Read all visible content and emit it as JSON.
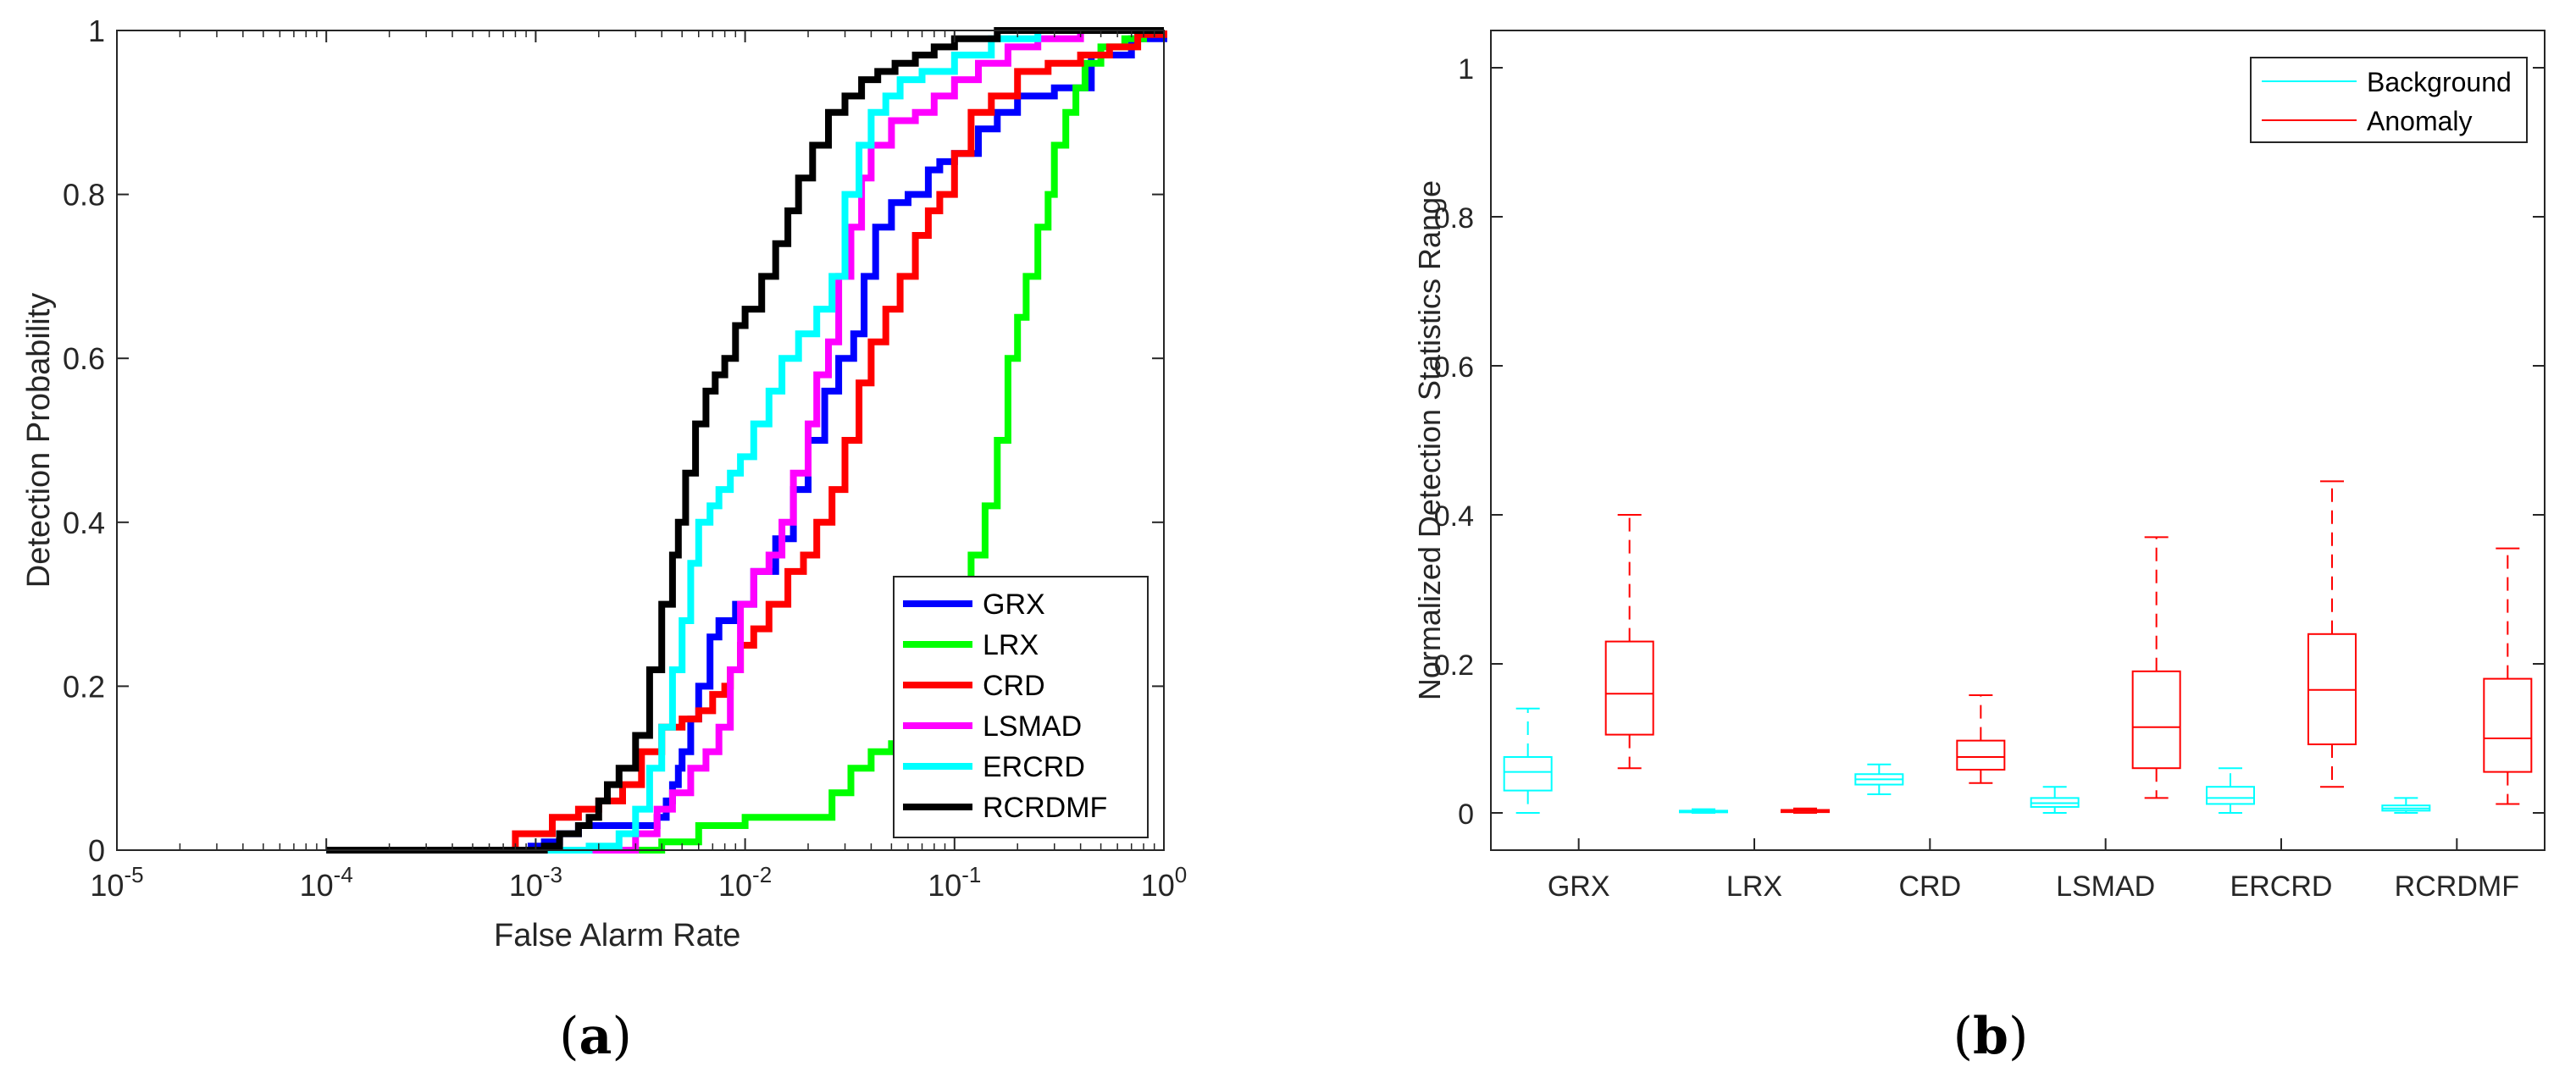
{
  "chart_data": [
    {
      "type": "line",
      "panel_label": "(a)",
      "panel_letter": "a",
      "title": "",
      "xlabel": "False Alarm Rate",
      "ylabel": "Detection Probability",
      "xscale": "log",
      "xlim": [
        1e-05,
        1
      ],
      "ylim": [
        0,
        1
      ],
      "x_ticks": [
        {
          "base": "10",
          "exp": "-5"
        },
        {
          "base": "10",
          "exp": "-4"
        },
        {
          "base": "10",
          "exp": "-3"
        },
        {
          "base": "10",
          "exp": "-2"
        },
        {
          "base": "10",
          "exp": "-1"
        },
        {
          "base": "10",
          "exp": "0"
        }
      ],
      "y_ticks": [
        "0",
        "0.2",
        "0.4",
        "0.6",
        "0.8",
        "1"
      ],
      "legend_position": "bottom-right",
      "series": [
        {
          "name": "GRX",
          "color": "#0000ff",
          "x": [
            0.0001,
            0.0008,
            0.00095,
            0.0011,
            0.0013,
            0.0016,
            0.002,
            0.0024,
            0.003,
            0.0038,
            0.0042,
            0.0045,
            0.0048,
            0.005,
            0.0055,
            0.006,
            0.0068,
            0.0075,
            0.009,
            0.011,
            0.014,
            0.017,
            0.02,
            0.024,
            0.028,
            0.033,
            0.037,
            0.042,
            0.05,
            0.06,
            0.075,
            0.085,
            0.1,
            0.13,
            0.16,
            0.2,
            0.3,
            0.45,
            0.7,
            1
          ],
          "y": [
            0,
            0,
            0.005,
            0.01,
            0.02,
            0.03,
            0.03,
            0.03,
            0.03,
            0.04,
            0.06,
            0.08,
            0.1,
            0.12,
            0.16,
            0.2,
            0.26,
            0.28,
            0.3,
            0.34,
            0.38,
            0.44,
            0.5,
            0.56,
            0.6,
            0.63,
            0.7,
            0.76,
            0.79,
            0.8,
            0.83,
            0.84,
            0.85,
            0.88,
            0.9,
            0.92,
            0.93,
            0.97,
            0.99,
            1
          ]
        },
        {
          "name": "LRX",
          "color": "#00ff00",
          "x": [
            0.0001,
            0.0012,
            0.0025,
            0.004,
            0.006,
            0.01,
            0.015,
            0.02,
            0.026,
            0.032,
            0.04,
            0.05,
            0.065,
            0.08,
            0.1,
            0.12,
            0.14,
            0.16,
            0.18,
            0.2,
            0.22,
            0.25,
            0.28,
            0.3,
            0.34,
            0.38,
            0.42,
            0.5,
            0.65,
            0.8,
            1
          ],
          "y": [
            0,
            0,
            0,
            0.01,
            0.03,
            0.04,
            0.04,
            0.04,
            0.07,
            0.1,
            0.12,
            0.13,
            0.16,
            0.2,
            0.3,
            0.36,
            0.42,
            0.5,
            0.6,
            0.65,
            0.7,
            0.76,
            0.8,
            0.86,
            0.9,
            0.93,
            0.96,
            0.98,
            0.99,
            1,
            1
          ]
        },
        {
          "name": "CRD",
          "color": "#ff0000",
          "x": [
            0.0001,
            0.0007,
            0.0008,
            0.0012,
            0.0016,
            0.002,
            0.0026,
            0.0032,
            0.004,
            0.005,
            0.006,
            0.007,
            0.008,
            0.0085,
            0.0095,
            0.011,
            0.013,
            0.016,
            0.019,
            0.022,
            0.026,
            0.03,
            0.035,
            0.04,
            0.047,
            0.055,
            0.065,
            0.075,
            0.085,
            0.1,
            0.12,
            0.15,
            0.2,
            0.28,
            0.4,
            0.55,
            0.75,
            1
          ],
          "y": [
            0,
            0,
            0.02,
            0.04,
            0.05,
            0.06,
            0.08,
            0.12,
            0.15,
            0.16,
            0.17,
            0.19,
            0.2,
            0.22,
            0.25,
            0.27,
            0.3,
            0.34,
            0.36,
            0.4,
            0.44,
            0.5,
            0.57,
            0.62,
            0.66,
            0.7,
            0.75,
            0.78,
            0.8,
            0.85,
            0.9,
            0.92,
            0.95,
            0.96,
            0.97,
            0.98,
            0.995,
            1
          ]
        },
        {
          "name": "LSMAD",
          "color": "#ff00ff",
          "x": [
            0.0001,
            0.0023,
            0.003,
            0.0038,
            0.0045,
            0.0055,
            0.0065,
            0.0075,
            0.0085,
            0.0095,
            0.011,
            0.013,
            0.015,
            0.017,
            0.02,
            0.022,
            0.025,
            0.028,
            0.032,
            0.036,
            0.04,
            0.05,
            0.065,
            0.08,
            0.1,
            0.13,
            0.18,
            0.25,
            0.4,
            0.6,
            1
          ],
          "y": [
            0,
            0,
            0.02,
            0.05,
            0.07,
            0.1,
            0.12,
            0.15,
            0.22,
            0.3,
            0.34,
            0.36,
            0.4,
            0.46,
            0.52,
            0.58,
            0.62,
            0.7,
            0.76,
            0.82,
            0.86,
            0.89,
            0.9,
            0.92,
            0.94,
            0.96,
            0.98,
            0.99,
            1,
            1,
            1
          ]
        },
        {
          "name": "ERCRD",
          "color": "#00ffff",
          "x": [
            0.0001,
            0.001,
            0.0018,
            0.0025,
            0.003,
            0.0035,
            0.004,
            0.0045,
            0.005,
            0.0055,
            0.006,
            0.0068,
            0.0075,
            0.0085,
            0.0095,
            0.011,
            0.013,
            0.015,
            0.018,
            0.022,
            0.026,
            0.03,
            0.035,
            0.04,
            0.047,
            0.055,
            0.07,
            0.1,
            0.15,
            0.25,
            0.4,
            1
          ],
          "y": [
            0,
            0,
            0.005,
            0.02,
            0.05,
            0.1,
            0.15,
            0.22,
            0.28,
            0.35,
            0.4,
            0.42,
            0.44,
            0.46,
            0.48,
            0.52,
            0.56,
            0.6,
            0.63,
            0.66,
            0.7,
            0.8,
            0.86,
            0.9,
            0.92,
            0.94,
            0.95,
            0.97,
            0.99,
            1,
            1,
            1
          ]
        },
        {
          "name": "RCRDMF",
          "color": "#000000",
          "x": [
            0.0001,
            0.0009,
            0.0011,
            0.0013,
            0.0016,
            0.0018,
            0.002,
            0.0022,
            0.0025,
            0.003,
            0.0035,
            0.004,
            0.0045,
            0.0048,
            0.0052,
            0.0058,
            0.0065,
            0.0072,
            0.008,
            0.009,
            0.01,
            0.012,
            0.014,
            0.016,
            0.018,
            0.021,
            0.025,
            0.03,
            0.036,
            0.043,
            0.052,
            0.065,
            0.08,
            0.1,
            0.13,
            0.16,
            0.2,
            0.3,
            0.5,
            1
          ],
          "y": [
            0,
            0,
            0.005,
            0.02,
            0.03,
            0.04,
            0.06,
            0.08,
            0.1,
            0.14,
            0.22,
            0.3,
            0.36,
            0.4,
            0.46,
            0.52,
            0.56,
            0.58,
            0.6,
            0.64,
            0.66,
            0.7,
            0.74,
            0.78,
            0.82,
            0.86,
            0.9,
            0.92,
            0.94,
            0.95,
            0.96,
            0.97,
            0.98,
            0.99,
            0.99,
            1,
            1,
            1,
            1,
            1
          ]
        }
      ]
    },
    {
      "type": "box",
      "panel_label": "(b)",
      "panel_letter": "b",
      "title": "",
      "xlabel": "",
      "ylabel": "Normalized Detection Statistics Range",
      "ylim": [
        -0.05,
        1.05
      ],
      "y_ticks": [
        "0",
        "0.2",
        "0.4",
        "0.6",
        "0.8",
        "1"
      ],
      "categories": [
        "GRX",
        "LRX",
        "CRD",
        "LSMAD",
        "ERCRD",
        "RCRDMF"
      ],
      "legend_position": "top-right",
      "series": [
        {
          "name": "Background",
          "color": "#00ffff",
          "boxes": [
            {
              "whisker_low": 0.0,
              "q1": 0.03,
              "median": 0.055,
              "q3": 0.075,
              "whisker_high": 0.14
            },
            {
              "whisker_low": 0.0,
              "q1": 0.001,
              "median": 0.002,
              "q3": 0.003,
              "whisker_high": 0.005
            },
            {
              "whisker_low": 0.025,
              "q1": 0.038,
              "median": 0.045,
              "q3": 0.052,
              "whisker_high": 0.065
            },
            {
              "whisker_low": 0.0,
              "q1": 0.008,
              "median": 0.013,
              "q3": 0.02,
              "whisker_high": 0.035
            },
            {
              "whisker_low": 0.0,
              "q1": 0.012,
              "median": 0.02,
              "q3": 0.035,
              "whisker_high": 0.06
            },
            {
              "whisker_low": 0.0,
              "q1": 0.003,
              "median": 0.006,
              "q3": 0.01,
              "whisker_high": 0.02
            }
          ]
        },
        {
          "name": "Anomaly",
          "color": "#ff0000",
          "boxes": [
            {
              "whisker_low": 0.06,
              "q1": 0.105,
              "median": 0.16,
              "q3": 0.23,
              "whisker_high": 0.4
            },
            {
              "whisker_low": 0.0,
              "q1": 0.001,
              "median": 0.003,
              "q3": 0.004,
              "whisker_high": 0.006
            },
            {
              "whisker_low": 0.04,
              "q1": 0.058,
              "median": 0.075,
              "q3": 0.097,
              "whisker_high": 0.158
            },
            {
              "whisker_low": 0.02,
              "q1": 0.06,
              "median": 0.115,
              "q3": 0.19,
              "whisker_high": 0.37
            },
            {
              "whisker_low": 0.035,
              "q1": 0.092,
              "median": 0.165,
              "q3": 0.24,
              "whisker_high": 0.445
            },
            {
              "whisker_low": 0.012,
              "q1": 0.055,
              "median": 0.1,
              "q3": 0.18,
              "whisker_high": 0.355
            }
          ]
        }
      ]
    }
  ]
}
